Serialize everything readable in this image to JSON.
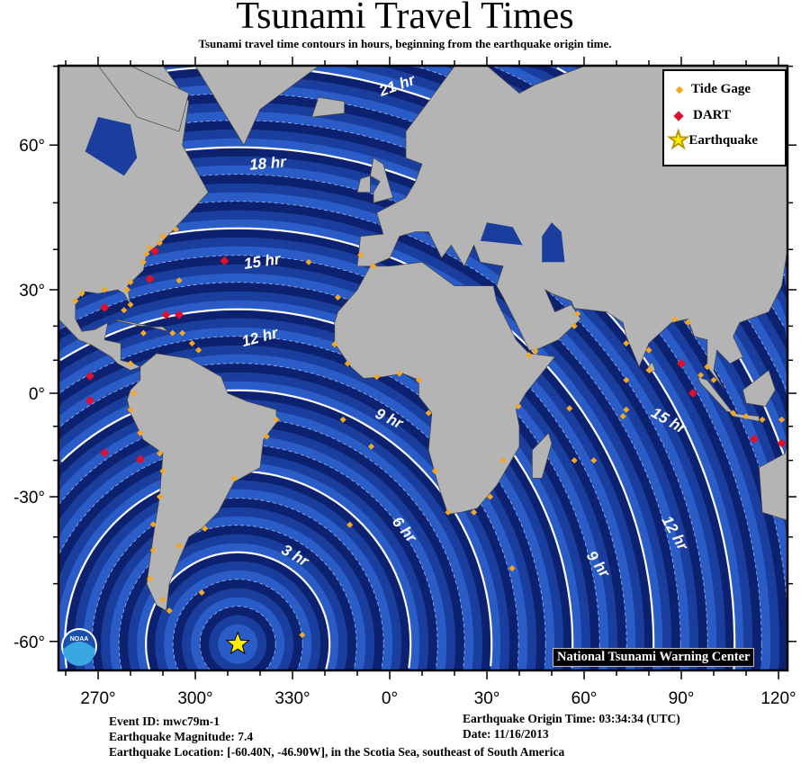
{
  "header": {
    "title": "Tsunami Travel Times",
    "subtitle": "Tsunami travel time contours in hours, beginning from the earthquake origin time."
  },
  "legend": {
    "tide_gage": "Tide Gage",
    "dart": "DART",
    "earthquake": "Earthquake"
  },
  "credit": "National Tsunami Warning Center",
  "colors": {
    "tide_gage": "#f5a623",
    "dart": "#e0102a",
    "earthquake": "#ffee00",
    "land": "#b4b4b4",
    "bands": [
      "#2a5cc8",
      "#1a3e9e",
      "#0c2170"
    ],
    "background": "#07124a"
  },
  "axes": {
    "lon_ticks": [
      {
        "value": -90,
        "label": "270°"
      },
      {
        "value": -60,
        "label": "300°"
      },
      {
        "value": -30,
        "label": "330°"
      },
      {
        "value": 0,
        "label": "0°"
      },
      {
        "value": 30,
        "label": "30°"
      },
      {
        "value": 60,
        "label": "60°"
      },
      {
        "value": 90,
        "label": "90°"
      },
      {
        "value": 120,
        "label": "120°"
      }
    ],
    "lat_ticks": [
      {
        "value": 60,
        "label": "60°"
      },
      {
        "value": 30,
        "label": "30°"
      },
      {
        "value": 0,
        "label": "0°"
      },
      {
        "value": -30,
        "label": "-30°"
      },
      {
        "value": -60,
        "label": "-60°"
      }
    ],
    "projection": "mercator"
  },
  "contours": [
    {
      "label": "3 hr",
      "hours": 3
    },
    {
      "label": "6 hr",
      "hours": 6
    },
    {
      "label": "9 hr",
      "hours": 9
    },
    {
      "label": "12 hr",
      "hours": 12
    },
    {
      "label": "15 hr",
      "hours": 15
    },
    {
      "label": "18 hr",
      "hours": 18
    },
    {
      "label": "21 hr",
      "hours": 21
    },
    {
      "label": "9 hr",
      "hours": 9
    },
    {
      "label": "12 hr",
      "hours": 12
    },
    {
      "label": "12 hr",
      "hours": 12
    },
    {
      "label": "15 hr",
      "hours": 15
    }
  ],
  "epicenter": {
    "lat": -60.4,
    "lon": -46.9
  },
  "tide_gages": [
    [
      -76,
      37
    ],
    [
      -75,
      39
    ],
    [
      -74,
      40.5
    ],
    [
      -71,
      41.5
    ],
    [
      -70,
      43
    ],
    [
      -66,
      44.5
    ],
    [
      -80,
      32
    ],
    [
      -81,
      30
    ],
    [
      -80,
      26
    ],
    [
      -82,
      24.5
    ],
    [
      -88,
      30
    ],
    [
      -95,
      29
    ],
    [
      -97,
      27
    ],
    [
      -67,
      18
    ],
    [
      -64,
      18
    ],
    [
      -61,
      15
    ],
    [
      -59,
      13
    ],
    [
      -76,
      18
    ],
    [
      -80,
      9
    ],
    [
      -79,
      0
    ],
    [
      -80,
      -5
    ],
    [
      -77,
      -12
    ],
    [
      -71,
      -18
    ],
    [
      -70,
      -23
    ],
    [
      -71,
      -30
    ],
    [
      -73,
      -37
    ],
    [
      -73,
      -43
    ],
    [
      -74,
      -49
    ],
    [
      -70,
      -53
    ],
    [
      -68,
      -55
    ],
    [
      -58,
      -51.7
    ],
    [
      -65,
      -42
    ],
    [
      -57,
      -38
    ],
    [
      -48,
      -25
    ],
    [
      -38,
      -13
    ],
    [
      -35,
      -8
    ],
    [
      -16,
      28
    ],
    [
      -17,
      14.7
    ],
    [
      -13,
      9
    ],
    [
      -4,
      5
    ],
    [
      3,
      6
    ],
    [
      9,
      4
    ],
    [
      12,
      -6
    ],
    [
      14,
      -23
    ],
    [
      18,
      -34
    ],
    [
      26,
      -34
    ],
    [
      31,
      -30
    ],
    [
      35,
      -20
    ],
    [
      39.7,
      -4
    ],
    [
      43,
      11.5
    ],
    [
      45,
      12.7
    ],
    [
      57,
      20
    ],
    [
      58,
      23.5
    ],
    [
      73,
      15
    ],
    [
      73,
      4
    ],
    [
      80,
      7
    ],
    [
      80,
      13
    ],
    [
      88,
      22
    ],
    [
      92,
      21
    ],
    [
      98,
      8
    ],
    [
      100,
      4
    ],
    [
      96,
      5.5
    ],
    [
      106,
      -6
    ],
    [
      110,
      -7
    ],
    [
      115,
      -8
    ],
    [
      121,
      -8
    ],
    [
      -9,
      38.7
    ],
    [
      -5,
      36
    ],
    [
      -25,
      37
    ],
    [
      -65,
      32.4
    ],
    [
      -14.4,
      -8
    ],
    [
      -5.7,
      -16
    ],
    [
      -12.3,
      -37.1
    ],
    [
      37.8,
      -46.9
    ],
    [
      72,
      -7
    ],
    [
      55.5,
      -4.6
    ],
    [
      63,
      -20
    ],
    [
      73,
      -5
    ],
    [
      57,
      -20
    ],
    [
      -27,
      -59
    ]
  ],
  "dart_buoys": [
    [
      -72.5,
      39.6
    ],
    [
      -51,
      37.3
    ],
    [
      -74,
      32.8
    ],
    [
      -69,
      23.2
    ],
    [
      -65,
      23.2
    ],
    [
      -88,
      25.2
    ],
    [
      -92.5,
      5.2
    ],
    [
      -92.5,
      -2.2
    ],
    [
      -88,
      -17.8
    ],
    [
      -77,
      -19.7
    ],
    [
      90,
      9
    ],
    [
      93.6,
      0
    ],
    [
      112.5,
      -13.8
    ],
    [
      121,
      -15
    ]
  ],
  "event": {
    "event_id": "Event ID: mwc79m-1",
    "magnitude": "Earthquake Magnitude: 7.4",
    "location": "Earthquake Location: [-60.40N, -46.90W], in the Scotia Sea, southeast of South America",
    "origin_time": "Earthquake Origin Time: 03:34:34 (UTC)",
    "date": "Date: 11/16/2013"
  }
}
